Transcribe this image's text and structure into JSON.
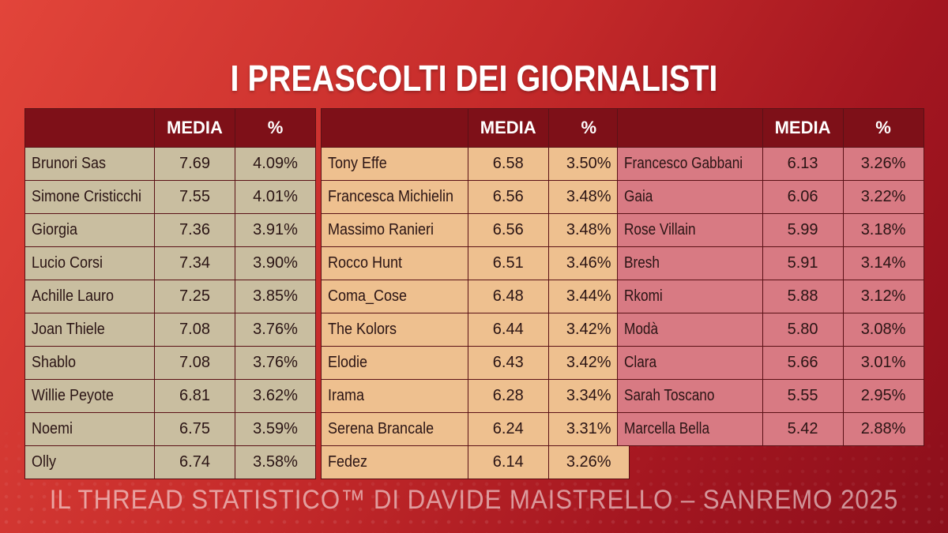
{
  "title": "I PREASCOLTI DEI GIORNALISTI",
  "footer": "IL THREAD STATISTICO™ DI DAVIDE MAISTRELLO – SANREMO 2025",
  "headers": {
    "media": "MEDIA",
    "percent": "%"
  },
  "colors": {
    "col1": "#c9bea0",
    "col2": "#eec08f",
    "col3": "#d87a83",
    "header": "#7e1018"
  },
  "tables": [
    {
      "rows": [
        {
          "name": "Brunori Sas",
          "media": "7.69",
          "pct": "4.09%"
        },
        {
          "name": "Simone Cristicchi",
          "media": "7.55",
          "pct": "4.01%"
        },
        {
          "name": "Giorgia",
          "media": "7.36",
          "pct": "3.91%"
        },
        {
          "name": "Lucio Corsi",
          "media": "7.34",
          "pct": "3.90%"
        },
        {
          "name": "Achille Lauro",
          "media": "7.25",
          "pct": "3.85%"
        },
        {
          "name": "Joan Thiele",
          "media": "7.08",
          "pct": "3.76%"
        },
        {
          "name": "Shablo",
          "media": "7.08",
          "pct": "3.76%"
        },
        {
          "name": "Willie Peyote",
          "media": "6.81",
          "pct": "3.62%"
        },
        {
          "name": "Noemi",
          "media": "6.75",
          "pct": "3.59%"
        },
        {
          "name": "Olly",
          "media": "6.74",
          "pct": "3.58%"
        }
      ]
    },
    {
      "rows": [
        {
          "name": "Tony Effe",
          "media": "6.58",
          "pct": "3.50%"
        },
        {
          "name": "Francesca Michielin",
          "media": "6.56",
          "pct": "3.48%"
        },
        {
          "name": "Massimo Ranieri",
          "media": "6.56",
          "pct": "3.48%"
        },
        {
          "name": "Rocco Hunt",
          "media": "6.51",
          "pct": "3.46%"
        },
        {
          "name": "Coma_Cose",
          "media": "6.48",
          "pct": "3.44%"
        },
        {
          "name": "The Kolors",
          "media": "6.44",
          "pct": "3.42%"
        },
        {
          "name": "Elodie",
          "media": "6.43",
          "pct": "3.42%"
        },
        {
          "name": "Irama",
          "media": "6.28",
          "pct": "3.34%"
        },
        {
          "name": "Serena Brancale",
          "media": "6.24",
          "pct": "3.31%"
        },
        {
          "name": "Fedez",
          "media": "6.14",
          "pct": "3.26%"
        }
      ]
    },
    {
      "rows": [
        {
          "name": "Francesco Gabbani",
          "media": "6.13",
          "pct": "3.26%"
        },
        {
          "name": "Gaia",
          "media": "6.06",
          "pct": "3.22%"
        },
        {
          "name": "Rose Villain",
          "media": "5.99",
          "pct": "3.18%"
        },
        {
          "name": "Bresh",
          "media": "5.91",
          "pct": "3.14%"
        },
        {
          "name": "Rkomi",
          "media": "5.88",
          "pct": "3.12%"
        },
        {
          "name": "Modà",
          "media": "5.80",
          "pct": "3.08%"
        },
        {
          "name": "Clara",
          "media": "5.66",
          "pct": "3.01%"
        },
        {
          "name": "Sarah Toscano",
          "media": "5.55",
          "pct": "2.95%"
        },
        {
          "name": "Marcella Bella",
          "media": "5.42",
          "pct": "2.88%"
        }
      ]
    }
  ]
}
